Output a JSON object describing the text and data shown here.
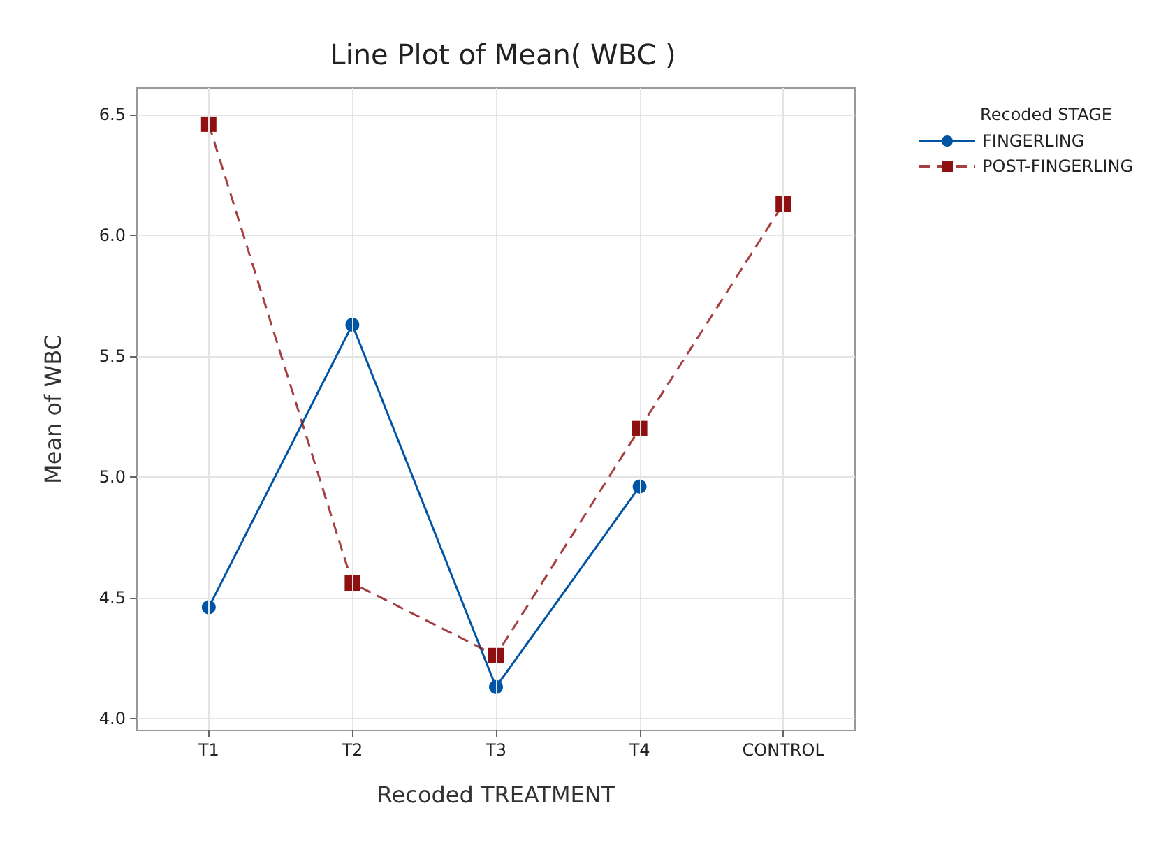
{
  "chart_data": {
    "type": "line",
    "title": "Line Plot of Mean( WBC )",
    "xlabel": "Recoded TREATMENT",
    "ylabel": "Mean of WBC",
    "legend_title": "Recoded STAGE",
    "categories": [
      "T1",
      "T2",
      "T3",
      "T4",
      "CONTROL"
    ],
    "series": [
      {
        "name": "FINGERLING",
        "color": "#0054a6",
        "marker": "circle",
        "line_style": "solid",
        "values": [
          4.46,
          5.63,
          4.13,
          4.96,
          null
        ]
      },
      {
        "name": "POST-FINGERLING",
        "color": "#8f1010",
        "marker": "square",
        "line_style": "dashed",
        "values": [
          6.46,
          4.56,
          4.26,
          5.2,
          6.13
        ]
      }
    ],
    "ylim": [
      3.95,
      6.61
    ],
    "yticks": [
      {
        "value": 4,
        "label": "4.0"
      },
      4.5,
      {
        "value": 5,
        "label": "5.0"
      },
      5.5,
      {
        "value": 6,
        "label": "6.0"
      },
      6.5
    ],
    "grid": true,
    "legend": "top right"
  }
}
